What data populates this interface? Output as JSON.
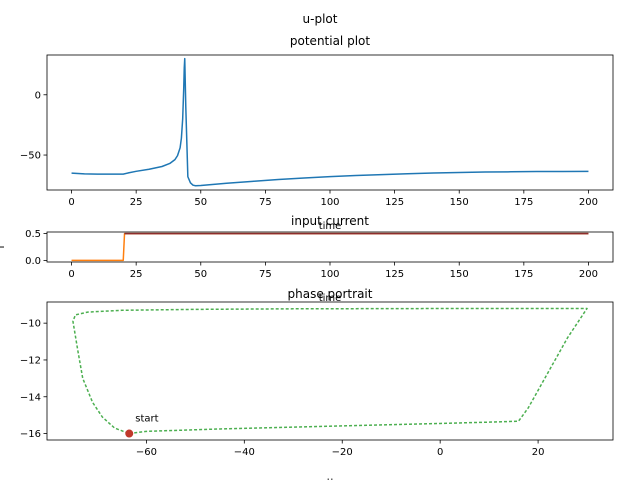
{
  "figure": {
    "suptitle": "u-plot"
  },
  "chart_data": [
    {
      "id": "potential",
      "type": "line",
      "title": "potential plot",
      "xlabel": "time",
      "ylabel": "",
      "xlim": [
        -9.5,
        209.5
      ],
      "ylim": [
        -79,
        33
      ],
      "xticks": [
        0,
        25,
        50,
        75,
        100,
        125,
        150,
        175,
        200
      ],
      "yticks": [
        0,
        -50
      ],
      "grid": false,
      "series": [
        {
          "color": "#1f77b4",
          "x": [
            0,
            5,
            10,
            15,
            20,
            22,
            25,
            30,
            35,
            38,
            40,
            41,
            42,
            42.5,
            43,
            43.4,
            43.6,
            43.8,
            44.2,
            45,
            46,
            47,
            48,
            50,
            55,
            60,
            70,
            80,
            90,
            100,
            110,
            120,
            130,
            140,
            150,
            160,
            170,
            180,
            190,
            200
          ],
          "y": [
            -65,
            -65.6,
            -65.8,
            -65.8,
            -65.8,
            -64.8,
            -63.5,
            -61.8,
            -59.5,
            -57,
            -53.8,
            -50.5,
            -44,
            -36,
            -20,
            5,
            22,
            30,
            -10,
            -68,
            -73,
            -75,
            -75.5,
            -75.3,
            -74.3,
            -73.4,
            -71.8,
            -70.3,
            -69,
            -67.9,
            -67,
            -66.2,
            -65.5,
            -64.9,
            -64.5,
            -64.1,
            -63.9,
            -63.7,
            -63.6,
            -63.5
          ]
        }
      ]
    },
    {
      "id": "current",
      "type": "line",
      "title": "input current",
      "xlabel": "time",
      "ylabel": "I",
      "xlim": [
        -9.5,
        209.5
      ],
      "ylim": [
        -0.03,
        0.53
      ],
      "xticks": [
        0,
        25,
        50,
        75,
        100,
        125,
        150,
        175,
        200
      ],
      "yticks": [
        0.0,
        0.5
      ],
      "ytick_labels": [
        "0.0",
        "0.5"
      ],
      "grid": false,
      "series": [
        {
          "color": "#ff7f0e",
          "x": [
            0,
            20,
            20.5,
            200
          ],
          "y": [
            0,
            0,
            0.5,
            0.5
          ]
        },
        {
          "color": "#8c2d2d",
          "x": [
            20.5,
            200
          ],
          "y": [
            0.5,
            0.5
          ]
        }
      ]
    },
    {
      "id": "phase",
      "type": "line",
      "title": "phase portrait",
      "xlabel": "u",
      "ylabel": "",
      "xlim": [
        -80.3,
        35.3
      ],
      "ylim": [
        -16.35,
        -8.85
      ],
      "xticks": [
        -60,
        -40,
        -20,
        0,
        20
      ],
      "yticks": [
        -10,
        -12,
        -14,
        -16
      ],
      "grid": false,
      "series": [
        {
          "color": "#4caf50",
          "dashed": true,
          "x": [
            -63.5,
            -60,
            -45,
            -30,
            -15,
            0,
            10,
            16,
            18,
            22,
            26,
            30,
            25,
            10,
            -10,
            -30,
            -50,
            -65,
            -72,
            -74.5,
            -75,
            -74,
            -73,
            -71,
            -69,
            -66.5,
            -63.5
          ],
          "y": [
            -16.0,
            -15.88,
            -15.75,
            -15.65,
            -15.55,
            -15.45,
            -15.38,
            -15.33,
            -14.6,
            -12.7,
            -10.8,
            -9.2,
            -9.2,
            -9.2,
            -9.21,
            -9.22,
            -9.25,
            -9.3,
            -9.4,
            -9.55,
            -9.9,
            -11.5,
            -13.0,
            -14.3,
            -15.1,
            -15.7,
            -16.0
          ]
        }
      ],
      "marker": {
        "x": -63.5,
        "y": -16.0,
        "color": "#c0392b",
        "label": "start"
      }
    }
  ]
}
